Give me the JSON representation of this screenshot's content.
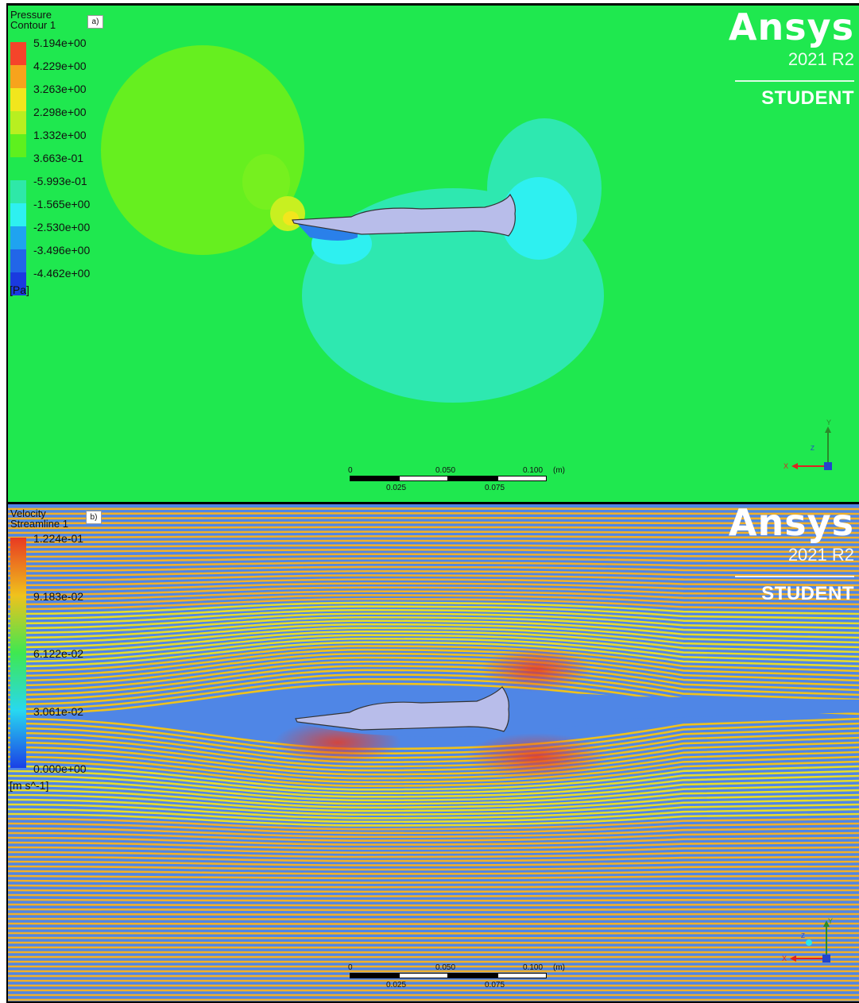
{
  "panel_a": {
    "tag": "a)",
    "legend_title_line1": "Pressure",
    "legend_title_line2": "Contour 1",
    "legend_values": [
      "5.194e+00",
      "4.229e+00",
      "3.263e+00",
      "2.298e+00",
      "1.332e+00",
      "3.663e-01",
      "-5.993e-01",
      "-1.565e+00",
      "-2.530e+00",
      "-3.496e+00",
      "-4.462e+00"
    ],
    "legend_colors": [
      "#f5442a",
      "#f7a31c",
      "#f2e61d",
      "#b8ef20",
      "#5ef01e",
      "#1fe84f",
      "#2ee8a8",
      "#2ef0f0",
      "#1fa3f0",
      "#2266e8",
      "#1a3ae0"
    ],
    "unit": "[Pa]",
    "background_color": "#1fe84f"
  },
  "panel_b": {
    "tag": "b)",
    "legend_title_line1": "Velocity",
    "legend_title_line2": "Streamline 1",
    "legend_values": [
      "1.224e-01",
      "9.183e-02",
      "6.122e-02",
      "3.061e-02",
      "0.000e+00"
    ],
    "legend_colors": [
      "#e83a22",
      "#f0c21c",
      "#3ee850",
      "#28d8f0",
      "#1a40e6"
    ],
    "unit": "[m s^-1]",
    "background_color": "#4f86e6"
  },
  "brand": {
    "logo": "Ansys",
    "version": "2021 R2",
    "edition": "STUDENT"
  },
  "scale_bar": {
    "top_labels": [
      "0",
      "0.050",
      "0.100",
      "(m)"
    ],
    "bottom_labels": [
      "0.025",
      "0.075"
    ]
  },
  "axes": {
    "x": "X",
    "y": "Y",
    "z": "Z"
  },
  "icons": {
    "axis_triad": "axis-triad-icon"
  }
}
